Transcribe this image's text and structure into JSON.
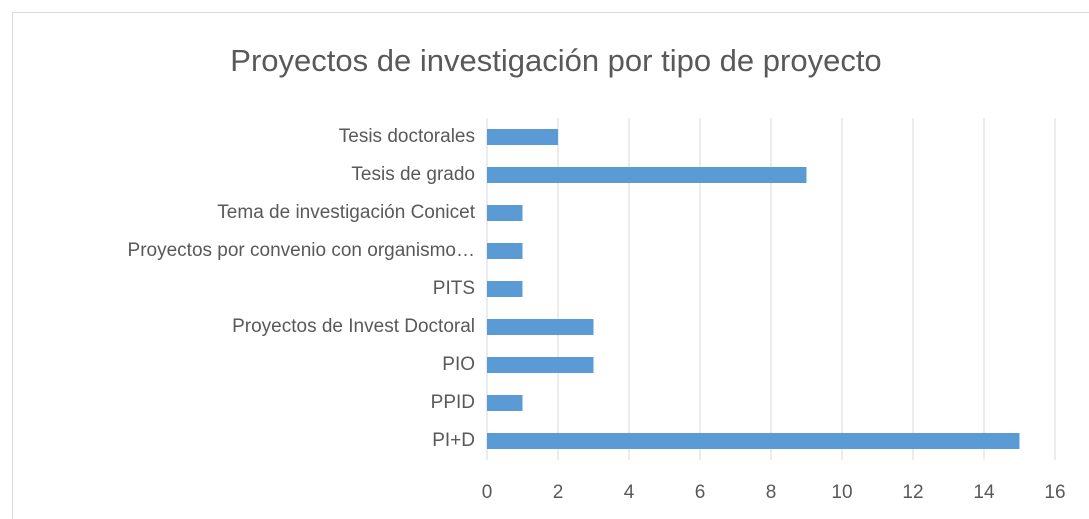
{
  "chart_data": {
    "type": "bar",
    "orientation": "horizontal",
    "title": "Proyectos de investigación por tipo de proyecto",
    "categories": [
      "Tesis doctorales",
      "Tesis de grado",
      "Tema de investigación Conicet",
      "Proyectos por convenio con organismo…",
      "PITS",
      "Proyectos de Invest Doctoral",
      "PIO",
      "PPID",
      "PI+D"
    ],
    "values": [
      2,
      9,
      1,
      1,
      1,
      3,
      3,
      1,
      15
    ],
    "color": "#5b9bd5",
    "xlim": [
      0,
      16
    ],
    "xticks": [
      0,
      2,
      4,
      6,
      8,
      10,
      12,
      14,
      16
    ],
    "grid": true
  }
}
